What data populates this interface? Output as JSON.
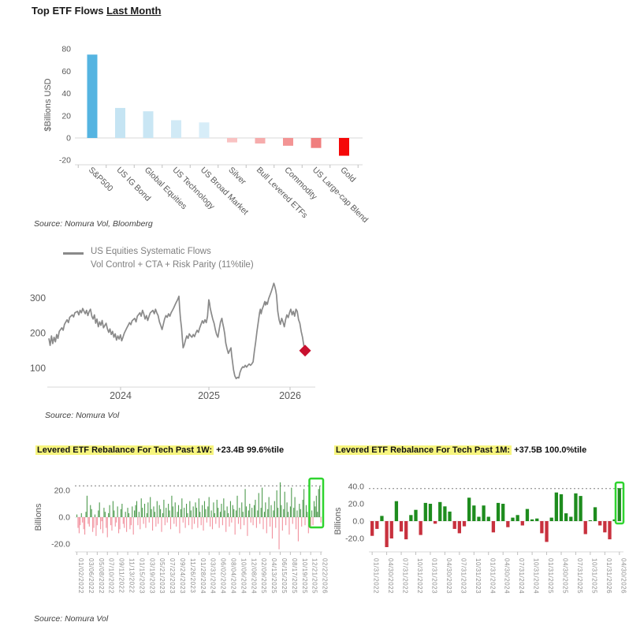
{
  "title": {
    "prefix": "Top ETF Flows ",
    "underlined": "Last Month"
  },
  "sources": {
    "top": "Source: Nomura Vol, Bloomberg",
    "mid": "Source: Nomura Vol",
    "bottom": "Source: Nomura Vol"
  },
  "colors": {
    "strong_blue": "#55B4E1",
    "light_blue": "#C9E6F4",
    "light_pink": "#F9C2C2",
    "strong_red": "#F50808",
    "line_gray": "#8A8A8A",
    "marker_red": "#C8102E",
    "weekly_green": "#4E9B4E",
    "weekly_red": "#F2919E",
    "monthly_green": "#1E8C1E",
    "monthly_red": "#C8313E",
    "highlight_yellow": "#F7F57E",
    "box_green": "#2FD42F"
  },
  "chart_data": [
    {
      "id": "etf_flows",
      "type": "bar",
      "title": "Top ETF Flows Last Month",
      "ylabel": "$Billions USD",
      "ylim": [
        -20,
        80
      ],
      "yticks": [
        80,
        60,
        40,
        20,
        0,
        -20
      ],
      "categories": [
        "S&P500",
        "US IG Bond",
        "Global Equities",
        "US Technology",
        "US Broad Market",
        "Silver",
        "Bull Levered ETFs",
        "Commodity",
        "US Large-cap Blend",
        "Gold"
      ],
      "values": [
        75,
        27,
        24,
        16,
        14,
        -4,
        -5,
        -7,
        -9,
        -16
      ],
      "bar_colors": [
        "#55B4E1",
        "#C5E4F3",
        "#C9E6F4",
        "#D1EAF6",
        "#D7EDF8",
        "#F9C2C2",
        "#F6ACAC",
        "#F39494",
        "#F07E7E",
        "#F50808"
      ]
    },
    {
      "id": "systematic_flows",
      "type": "line",
      "legend": [
        "US Equities Systematic Flows",
        "Vol Control + CTA + Risk Parity (11%tile)"
      ],
      "ylim": [
        50,
        360
      ],
      "yticks": [
        300,
        200,
        100
      ],
      "xticks": [
        "2024",
        "2025",
        "2026"
      ],
      "line_color": "#8A8A8A",
      "marker": {
        "shape": "diamond",
        "color": "#C8102E",
        "value": 150
      },
      "points": [
        [
          0,
          185
        ],
        [
          0.005,
          165
        ],
        [
          0.01,
          192
        ],
        [
          0.015,
          170
        ],
        [
          0.02,
          188
        ],
        [
          0.025,
          175
        ],
        [
          0.03,
          196
        ],
        [
          0.035,
          185
        ],
        [
          0.04,
          205
        ],
        [
          0.05,
          215
        ],
        [
          0.055,
          208
        ],
        [
          0.06,
          225
        ],
        [
          0.07,
          238
        ],
        [
          0.075,
          230
        ],
        [
          0.08,
          245
        ],
        [
          0.09,
          252
        ],
        [
          0.095,
          246
        ],
        [
          0.1,
          258
        ],
        [
          0.11,
          262
        ],
        [
          0.115,
          252
        ],
        [
          0.12,
          265
        ],
        [
          0.125,
          258
        ],
        [
          0.13,
          270
        ],
        [
          0.135,
          262
        ],
        [
          0.14,
          255
        ],
        [
          0.145,
          265
        ],
        [
          0.15,
          250
        ],
        [
          0.155,
          262
        ],
        [
          0.16,
          268
        ],
        [
          0.165,
          248
        ],
        [
          0.17,
          240
        ],
        [
          0.175,
          252
        ],
        [
          0.18,
          228
        ],
        [
          0.185,
          240
        ],
        [
          0.19,
          218
        ],
        [
          0.195,
          232
        ],
        [
          0.2,
          222
        ],
        [
          0.205,
          236
        ],
        [
          0.21,
          215
        ],
        [
          0.22,
          228
        ],
        [
          0.225,
          212
        ],
        [
          0.23,
          202
        ],
        [
          0.235,
          212
        ],
        [
          0.24,
          196
        ],
        [
          0.245,
          205
        ],
        [
          0.25,
          188
        ],
        [
          0.255,
          198
        ],
        [
          0.26,
          180
        ],
        [
          0.265,
          192
        ],
        [
          0.27,
          183
        ],
        [
          0.275,
          195
        ],
        [
          0.28,
          178
        ],
        [
          0.285,
          188
        ],
        [
          0.29,
          200
        ],
        [
          0.3,
          215
        ],
        [
          0.305,
          222
        ],
        [
          0.31,
          230
        ],
        [
          0.315,
          224
        ],
        [
          0.32,
          235
        ],
        [
          0.33,
          242
        ],
        [
          0.335,
          232
        ],
        [
          0.34,
          248
        ],
        [
          0.35,
          258
        ],
        [
          0.355,
          248
        ],
        [
          0.36,
          265
        ],
        [
          0.365,
          255
        ],
        [
          0.37,
          240
        ],
        [
          0.375,
          250
        ],
        [
          0.38,
          236
        ],
        [
          0.385,
          248
        ],
        [
          0.39,
          258
        ],
        [
          0.4,
          265
        ],
        [
          0.405,
          255
        ],
        [
          0.41,
          268
        ],
        [
          0.415,
          258
        ],
        [
          0.42,
          250
        ],
        [
          0.425,
          232
        ],
        [
          0.43,
          222
        ],
        [
          0.435,
          210
        ],
        [
          0.44,
          225
        ],
        [
          0.445,
          240
        ],
        [
          0.45,
          250
        ],
        [
          0.455,
          245
        ],
        [
          0.46,
          255
        ],
        [
          0.465,
          248
        ],
        [
          0.47,
          258
        ],
        [
          0.475,
          265
        ],
        [
          0.48,
          272
        ],
        [
          0.485,
          280
        ],
        [
          0.49,
          288
        ],
        [
          0.495,
          295
        ],
        [
          0.5,
          305
        ],
        [
          0.503,
          268
        ],
        [
          0.506,
          240
        ],
        [
          0.51,
          215
        ],
        [
          0.513,
          185
        ],
        [
          0.516,
          158
        ],
        [
          0.52,
          165
        ],
        [
          0.525,
          180
        ],
        [
          0.53,
          192
        ],
        [
          0.535,
          185
        ],
        [
          0.54,
          198
        ],
        [
          0.545,
          192
        ],
        [
          0.55,
          188
        ],
        [
          0.555,
          196
        ],
        [
          0.56,
          190
        ],
        [
          0.565,
          200
        ],
        [
          0.57,
          208
        ],
        [
          0.575,
          202
        ],
        [
          0.58,
          215
        ],
        [
          0.585,
          225
        ],
        [
          0.59,
          235
        ],
        [
          0.595,
          228
        ],
        [
          0.6,
          238
        ],
        [
          0.605,
          230
        ],
        [
          0.61,
          248
        ],
        [
          0.615,
          295
        ],
        [
          0.618,
          285
        ],
        [
          0.62,
          272
        ],
        [
          0.625,
          255
        ],
        [
          0.63,
          240
        ],
        [
          0.635,
          228
        ],
        [
          0.64,
          210
        ],
        [
          0.645,
          196
        ],
        [
          0.65,
          188
        ],
        [
          0.655,
          212
        ],
        [
          0.66,
          232
        ],
        [
          0.665,
          242
        ],
        [
          0.668,
          230
        ],
        [
          0.672,
          215
        ],
        [
          0.676,
          198
        ],
        [
          0.68,
          172
        ],
        [
          0.685,
          155
        ],
        [
          0.69,
          142
        ],
        [
          0.695,
          150
        ],
        [
          0.7,
          158
        ],
        [
          0.703,
          135
        ],
        [
          0.706,
          118
        ],
        [
          0.71,
          95
        ],
        [
          0.715,
          78
        ],
        [
          0.72,
          70
        ],
        [
          0.725,
          74
        ],
        [
          0.73,
          72
        ],
        [
          0.735,
          88
        ],
        [
          0.74,
          98
        ],
        [
          0.745,
          104
        ],
        [
          0.75,
          102
        ],
        [
          0.755,
          108
        ],
        [
          0.76,
          103
        ],
        [
          0.765,
          108
        ],
        [
          0.77,
          112
        ],
        [
          0.775,
          108
        ],
        [
          0.78,
          112
        ],
        [
          0.785,
          118
        ],
        [
          0.79,
          148
        ],
        [
          0.795,
          175
        ],
        [
          0.8,
          205
        ],
        [
          0.805,
          232
        ],
        [
          0.81,
          258
        ],
        [
          0.813,
          268
        ],
        [
          0.816,
          255
        ],
        [
          0.82,
          268
        ],
        [
          0.825,
          278
        ],
        [
          0.83,
          290
        ],
        [
          0.833,
          280
        ],
        [
          0.836,
          288
        ],
        [
          0.84,
          282
        ],
        [
          0.845,
          298
        ],
        [
          0.85,
          308
        ],
        [
          0.855,
          318
        ],
        [
          0.86,
          330
        ],
        [
          0.865,
          342
        ],
        [
          0.868,
          335
        ],
        [
          0.872,
          322
        ],
        [
          0.875,
          308
        ],
        [
          0.88,
          262
        ],
        [
          0.885,
          238
        ],
        [
          0.89,
          225
        ],
        [
          0.895,
          242
        ],
        [
          0.9,
          232
        ],
        [
          0.905,
          218
        ],
        [
          0.91,
          238
        ],
        [
          0.915,
          252
        ],
        [
          0.92,
          244
        ],
        [
          0.925,
          258
        ],
        [
          0.93,
          268
        ],
        [
          0.935,
          252
        ],
        [
          0.94,
          262
        ],
        [
          0.945,
          248
        ],
        [
          0.95,
          268
        ],
        [
          0.955,
          262
        ],
        [
          0.96,
          238
        ],
        [
          0.965,
          228
        ],
        [
          0.97,
          205
        ],
        [
          0.975,
          188
        ],
        [
          0.98,
          165
        ],
        [
          0.985,
          150
        ]
      ]
    },
    {
      "id": "tech_rebalance_1w",
      "type": "bar",
      "title_highlight": "Levered ETF Rebalance For Tech Past 1W:",
      "title_rest": " +23.4B 99.6%tile",
      "ylabel": "Billions",
      "ylim": [
        -30,
        30
      ],
      "yticks": [
        20,
        0,
        -20
      ],
      "ytick_labels": [
        "20.0",
        "0.0",
        "-20.0"
      ],
      "threshold": 23.4,
      "xtick_labels": [
        "01/02/2022",
        "03/06/2022",
        "05/08/2022",
        "07/10/2022",
        "09/11/2022",
        "11/13/2022",
        "01/15/2023",
        "03/19/2023",
        "05/21/2023",
        "07/23/2023",
        "09/24/2023",
        "11/26/2023",
        "01/28/2024",
        "03/31/2024",
        "06/02/2024",
        "08/04/2024",
        "10/06/2024",
        "12/08/2024",
        "02/09/2025",
        "04/13/2025",
        "06/15/2025",
        "08/17/2025",
        "10/19/2025",
        "12/21/2025",
        "02/22/2026"
      ],
      "values": [
        2,
        -8,
        -12,
        -6,
        3,
        -4,
        -9,
        -13,
        4,
        16,
        -5,
        -7,
        9,
        6,
        -11,
        -8,
        2,
        -14,
        -6,
        5,
        11,
        -9,
        -3,
        -12,
        7,
        4,
        -8,
        -15,
        3,
        9,
        -6,
        -10,
        12,
        5,
        -7,
        -4,
        8,
        -12,
        -9,
        6,
        10,
        -5,
        -8,
        4,
        -11,
        7,
        3,
        -9,
        -6,
        8,
        -13,
        5,
        9,
        12,
        -6,
        4,
        -9,
        14,
        7,
        -5,
        10,
        -8,
        3,
        11,
        -4,
        15,
        6,
        -10,
        8,
        4,
        -7,
        12,
        -5,
        9,
        6,
        -11,
        3,
        13,
        -6,
        7,
        -4,
        10,
        5,
        -9,
        16,
        8,
        -5,
        11,
        -7,
        4,
        9,
        -12,
        6,
        14,
        -4,
        7,
        -8,
        10,
        3,
        -6,
        12,
        5,
        -9,
        8,
        -5,
        11,
        7,
        -8,
        14,
        4,
        -6,
        9,
        -10,
        12,
        6,
        -4,
        8,
        15,
        -7,
        5,
        -9,
        11,
        3,
        -5,
        13,
        7,
        -8,
        4,
        10,
        -6,
        14,
        5,
        -11,
        8,
        3,
        -7,
        12,
        -4,
        9,
        6,
        -13,
        5,
        16,
        -5,
        7,
        -9,
        11,
        4,
        -6,
        21,
        8,
        -14,
        5,
        10,
        -4,
        7,
        -6,
        9,
        13,
        -8,
        5,
        18,
        -5,
        7,
        22,
        -9,
        4,
        11,
        -12,
        6,
        15,
        -7,
        9,
        -16,
        5,
        12,
        -8,
        20,
        7,
        -24,
        26,
        9,
        -10,
        6,
        19,
        -6,
        11,
        4,
        -13,
        8,
        22,
        -5,
        7,
        15,
        -9,
        5,
        -18,
        10,
        6,
        -7,
        13,
        21,
        -6,
        9,
        4,
        -12,
        23,
        -8,
        5,
        -6,
        12,
        8,
        16,
        4,
        21,
        23,
        -4
      ]
    },
    {
      "id": "tech_rebalance_1m",
      "type": "bar",
      "title_highlight": "Levered ETF Rebalance For Tech Past 1M:",
      "title_rest": " +37.5B 100.0%tile",
      "ylabel": "Billions",
      "ylim": [
        -32,
        42
      ],
      "yticks": [
        40,
        20,
        0,
        -20
      ],
      "ytick_labels": [
        "40.0",
        "20.0",
        "0.0",
        "-20.0"
      ],
      "threshold": 37.5,
      "xtick_labels": [
        "01/31/2022",
        "04/30/2022",
        "07/31/2022",
        "10/31/2022",
        "01/31/2023",
        "04/30/2023",
        "07/31/2023",
        "10/31/2023",
        "01/31/2024",
        "04/30/2024",
        "07/31/2024",
        "10/31/2024",
        "01/31/2025",
        "04/30/2025",
        "07/31/2025",
        "10/31/2025",
        "01/31/2026",
        "04/30/2026"
      ],
      "values": [
        -17,
        -9,
        6,
        -30,
        -20,
        23,
        -12,
        -21,
        7,
        13,
        -16,
        21,
        20,
        -3,
        22,
        17,
        11,
        -9,
        -14,
        -6,
        27,
        18,
        5,
        18,
        5,
        -13,
        21,
        20,
        -7,
        4,
        7,
        -5,
        14,
        2,
        3,
        -14,
        -24,
        4,
        33,
        31,
        9,
        5,
        32,
        29,
        -15,
        1,
        16,
        -5,
        -13,
        -21,
        2,
        38
      ]
    }
  ]
}
